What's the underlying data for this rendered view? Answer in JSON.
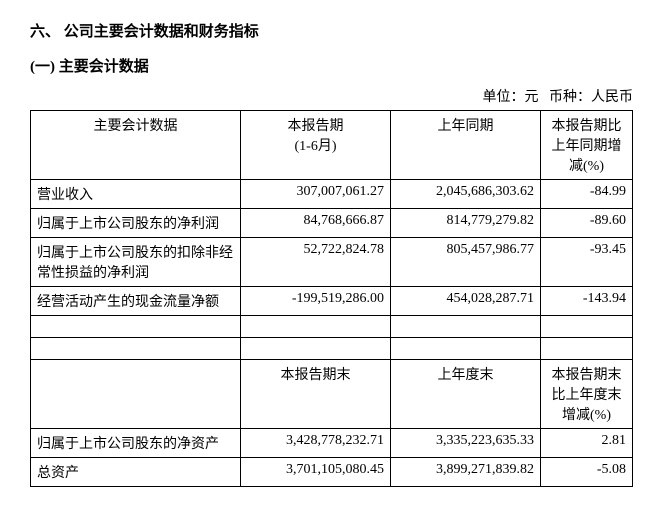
{
  "headings": {
    "h1": "六、 公司主要会计数据和财务指标",
    "h2": "(一) 主要会计数据"
  },
  "unit_line": {
    "unit_label": "单位：",
    "unit_value": "元",
    "currency_label": "币种：",
    "currency_value": "人民币"
  },
  "table": {
    "header1": {
      "c1": "主要会计数据",
      "c2": "本报告期\n(1-6月)",
      "c3": "上年同期",
      "c4": "本报告期比上年同期增减(%)"
    },
    "row1": {
      "c1": "营业收入",
      "c2": "307,007,061.27",
      "c3": "2,045,686,303.62",
      "c4": "-84.99"
    },
    "row2": {
      "c1": "归属于上市公司股东的净利润",
      "c2": "84,768,666.87",
      "c3": "814,779,279.82",
      "c4": "-89.60"
    },
    "row3": {
      "c1": "归属于上市公司股东的扣除非经常性损益的净利润",
      "c2": "52,722,824.78",
      "c3": "805,457,986.77",
      "c4": "-93.45"
    },
    "row4": {
      "c1": "经营活动产生的现金流量净额",
      "c2": "-199,519,286.00",
      "c3": "454,028,287.71",
      "c4": "-143.94"
    },
    "header2": {
      "c1": "",
      "c2": "本报告期末",
      "c3": "上年度末",
      "c4": "本报告期末比上年度末增减(%)"
    },
    "row5": {
      "c1": "归属于上市公司股东的净资产",
      "c2": "3,428,778,232.71",
      "c3": "3,335,223,635.33",
      "c4": "2.81"
    },
    "row6": {
      "c1": "总资产",
      "c2": "3,701,105,080.45",
      "c3": "3,899,271,839.82",
      "c4": "-5.08"
    }
  }
}
